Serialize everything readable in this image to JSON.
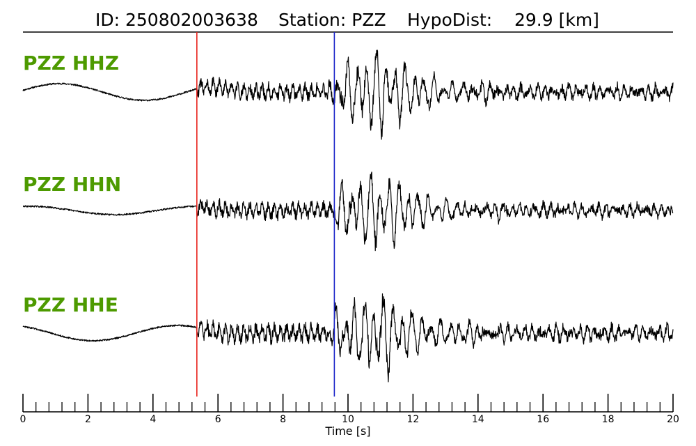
{
  "chart_data": {
    "type": "line",
    "title_id": "ID: 250802003638",
    "title_station": "Station: PZZ",
    "title_hypodist": "HypoDist:    29.9 [km]",
    "xlabel": "Time [s]",
    "xlim": [
      0,
      20
    ],
    "x_major_ticks": [
      0,
      2,
      4,
      6,
      8,
      10,
      12,
      14,
      16,
      18,
      20
    ],
    "x_minor_step": 0.4,
    "x_tick_labels": [
      "0",
      "2",
      "4",
      "6",
      "8",
      "10",
      "12",
      "14",
      "16",
      "18",
      "20"
    ],
    "picks": [
      {
        "phase": "P",
        "time": 5.35,
        "color": "#e8231c"
      },
      {
        "phase": "S",
        "time": 9.58,
        "color": "#1a24c8"
      }
    ],
    "trace_color": "#000000",
    "label_color": "#4d9a00",
    "series": [
      {
        "name": "PZZ HHZ"
      },
      {
        "name": "PZZ HHN"
      },
      {
        "name": "PZZ HHE"
      }
    ]
  }
}
